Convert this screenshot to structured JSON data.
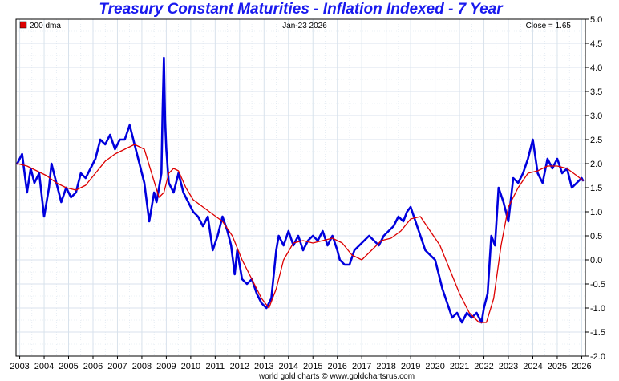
{
  "chart_title": "Treasury Constant Maturities - Inflation Indexed - 7 Year",
  "date_label": "Jan-23  2026",
  "close_label": "Close = 1.65",
  "credit": "world gold charts © www.goldchartsrus.com",
  "colors": {
    "title": "#1a1aee",
    "series": "#0000dd",
    "ma": "#dd0000",
    "grid": "#d8e2ec"
  },
  "chart_data": {
    "type": "line",
    "title": "Treasury Constant Maturities - Inflation Indexed - 7 Year",
    "xlim": [
      2002.85,
      2026.15
    ],
    "ylim": [
      -2.0,
      5.0
    ],
    "x_ticks": [
      "2003",
      "2004",
      "2005",
      "2006",
      "2007",
      "2008",
      "2009",
      "2010",
      "2011",
      "2012",
      "2013",
      "2014",
      "2015",
      "2016",
      "2017",
      "2018",
      "2019",
      "2020",
      "2021",
      "2022",
      "2023",
      "2024",
      "2025",
      "2026"
    ],
    "y_ticks": [
      "5.0",
      "4.5",
      "4.0",
      "3.5",
      "3.0",
      "2.5",
      "2.0",
      "1.5",
      "1.0",
      "0.5",
      "0.0",
      "-0.5",
      "-1.0",
      "-1.5",
      "-2.0"
    ],
    "y_axis_side": "right",
    "grid": true,
    "legend": "top-left",
    "series": [
      {
        "role": "yield",
        "x": [
          2002.9,
          2003.1,
          2003.3,
          2003.45,
          2003.6,
          2003.8,
          2004.0,
          2004.2,
          2004.3,
          2004.5,
          2004.7,
          2004.9,
          2005.1,
          2005.3,
          2005.5,
          2005.7,
          2005.9,
          2006.1,
          2006.3,
          2006.5,
          2006.7,
          2006.9,
          2007.1,
          2007.3,
          2007.5,
          2007.7,
          2007.9,
          2008.1,
          2008.3,
          2008.5,
          2008.6,
          2008.7,
          2008.8,
          2008.85,
          2008.9,
          2008.95,
          2009.0,
          2009.1,
          2009.3,
          2009.5,
          2009.7,
          2009.9,
          2010.1,
          2010.3,
          2010.5,
          2010.7,
          2010.9,
          2011.1,
          2011.3,
          2011.5,
          2011.65,
          2011.8,
          2011.9,
          2012.1,
          2012.3,
          2012.5,
          2012.7,
          2012.9,
          2013.1,
          2013.3,
          2013.5,
          2013.6,
          2013.8,
          2014.0,
          2014.2,
          2014.4,
          2014.6,
          2014.8,
          2015.0,
          2015.2,
          2015.4,
          2015.6,
          2015.8,
          2016.0,
          2016.1,
          2016.3,
          2016.5,
          2016.7,
          2016.9,
          2017.1,
          2017.3,
          2017.5,
          2017.7,
          2017.9,
          2018.1,
          2018.3,
          2018.5,
          2018.7,
          2018.85,
          2019.0,
          2019.2,
          2019.4,
          2019.6,
          2019.8,
          2020.0,
          2020.15,
          2020.3,
          2020.5,
          2020.7,
          2020.9,
          2021.1,
          2021.3,
          2021.5,
          2021.7,
          2021.9,
          2022.0,
          2022.15,
          2022.3,
          2022.45,
          2022.6,
          2022.8,
          2023.0,
          2023.2,
          2023.4,
          2023.6,
          2023.8,
          2024.0,
          2024.2,
          2024.4,
          2024.6,
          2024.8,
          2025.0,
          2025.2,
          2025.4,
          2025.6,
          2025.8,
          2026.0,
          2026.05
        ],
        "y": [
          2.0,
          2.2,
          1.4,
          1.9,
          1.6,
          1.8,
          0.9,
          1.5,
          2.0,
          1.6,
          1.2,
          1.5,
          1.3,
          1.4,
          1.8,
          1.7,
          1.9,
          2.1,
          2.5,
          2.4,
          2.6,
          2.3,
          2.5,
          2.5,
          2.8,
          2.4,
          2.0,
          1.6,
          0.8,
          1.4,
          1.2,
          1.5,
          1.8,
          3.1,
          4.2,
          2.9,
          2.3,
          1.6,
          1.4,
          1.8,
          1.4,
          1.2,
          1.0,
          0.9,
          0.7,
          0.9,
          0.2,
          0.5,
          0.9,
          0.6,
          0.3,
          -0.3,
          0.2,
          -0.4,
          -0.5,
          -0.4,
          -0.7,
          -0.9,
          -1.0,
          -0.8,
          0.2,
          0.5,
          0.3,
          0.6,
          0.3,
          0.5,
          0.2,
          0.4,
          0.5,
          0.4,
          0.6,
          0.3,
          0.5,
          0.2,
          0.0,
          -0.1,
          -0.1,
          0.2,
          0.3,
          0.4,
          0.5,
          0.4,
          0.3,
          0.5,
          0.6,
          0.7,
          0.9,
          0.8,
          1.0,
          1.1,
          0.8,
          0.5,
          0.2,
          0.1,
          0.0,
          -0.3,
          -0.6,
          -0.9,
          -1.2,
          -1.1,
          -1.3,
          -1.1,
          -1.2,
          -1.1,
          -1.3,
          -1.0,
          -0.7,
          0.5,
          0.3,
          1.5,
          1.2,
          0.8,
          1.7,
          1.6,
          1.8,
          2.1,
          2.5,
          1.8,
          1.6,
          2.1,
          1.9,
          2.1,
          1.8,
          1.9,
          1.5,
          1.6,
          1.7,
          1.65
        ]
      },
      {
        "name": "200 dma",
        "role": "moving-average",
        "x": [
          2002.9,
          2003.3,
          2003.7,
          2004.1,
          2004.5,
          2004.9,
          2005.3,
          2005.7,
          2006.1,
          2006.5,
          2006.9,
          2007.3,
          2007.7,
          2008.1,
          2008.4,
          2008.7,
          2008.9,
          2009.1,
          2009.3,
          2009.5,
          2009.8,
          2010.1,
          2010.5,
          2010.9,
          2011.3,
          2011.7,
          2012.1,
          2012.5,
          2012.9,
          2013.2,
          2013.5,
          2013.8,
          2014.2,
          2014.6,
          2015.0,
          2015.4,
          2015.8,
          2016.2,
          2016.6,
          2017.0,
          2017.4,
          2017.8,
          2018.2,
          2018.6,
          2019.0,
          2019.4,
          2019.8,
          2020.2,
          2020.6,
          2021.0,
          2021.4,
          2021.8,
          2022.1,
          2022.4,
          2022.7,
          2023.0,
          2023.4,
          2023.8,
          2024.2,
          2024.6,
          2025.0,
          2025.4,
          2025.8,
          2026.05
        ],
        "y": [
          2.0,
          1.95,
          1.85,
          1.75,
          1.6,
          1.5,
          1.45,
          1.55,
          1.8,
          2.05,
          2.2,
          2.3,
          2.4,
          2.3,
          1.8,
          1.3,
          1.4,
          1.8,
          1.9,
          1.85,
          1.5,
          1.25,
          1.1,
          0.95,
          0.8,
          0.5,
          0.0,
          -0.4,
          -0.8,
          -1.0,
          -0.6,
          0.0,
          0.35,
          0.4,
          0.35,
          0.4,
          0.45,
          0.35,
          0.1,
          0.0,
          0.2,
          0.4,
          0.45,
          0.6,
          0.85,
          0.9,
          0.6,
          0.3,
          -0.2,
          -0.7,
          -1.1,
          -1.3,
          -1.3,
          -0.8,
          0.3,
          1.1,
          1.5,
          1.8,
          1.85,
          1.95,
          1.95,
          1.9,
          1.75,
          1.65
        ]
      }
    ]
  }
}
